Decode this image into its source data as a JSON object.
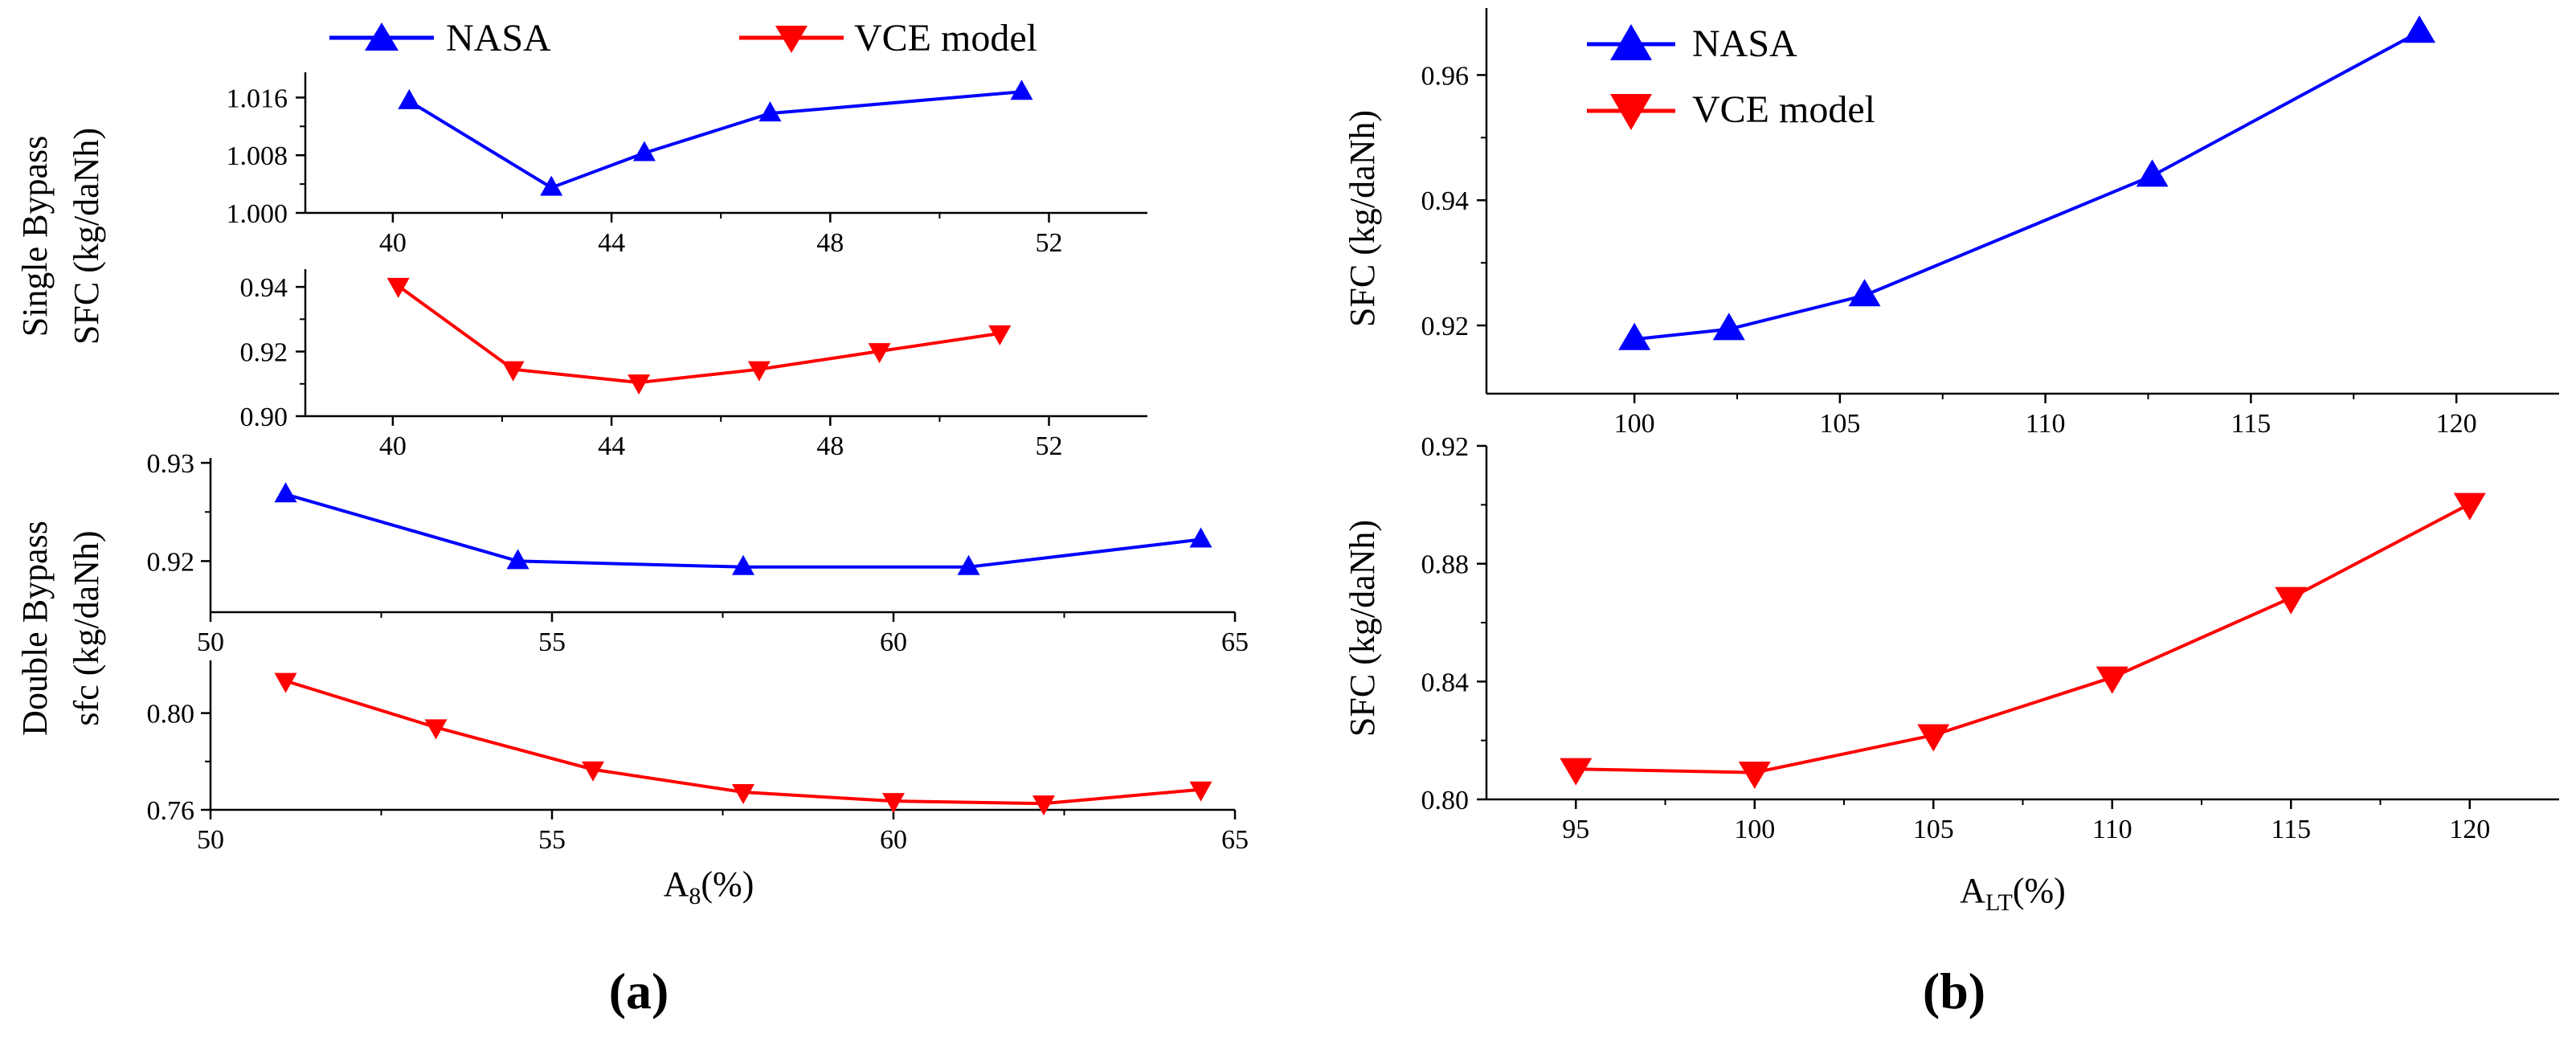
{
  "legend": {
    "nasa": "NASA",
    "vce": "VCE model"
  },
  "colors": {
    "nasa": "#0000FF",
    "vce": "#FF0000",
    "axis": "#000000"
  },
  "panel_labels": {
    "a": "(a)",
    "b": "(b)"
  },
  "group_labels": {
    "single_line1": "Single Bypass",
    "single_line2": "SFC (kg/daNh)",
    "double_line1": "Double Bypass",
    "double_line2": "sfc (kg/daNh)"
  },
  "xlabels": {
    "a_base": "A",
    "a_sub": "8",
    "a_unit": "(%)",
    "b_base": "A",
    "b_sub": "LT",
    "b_unit": "(%)"
  },
  "ylabels": {
    "b_top": "SFC (kg/daNh)",
    "b_bottom": "SFC (kg/daNh)"
  },
  "chart_data": [
    {
      "id": "a1",
      "type": "line",
      "panel": "a",
      "group": "Single Bypass",
      "series": [
        {
          "name": "NASA",
          "marker": "triangle-up",
          "x": [
            40.3,
            42.9,
            44.6,
            46.9,
            51.5
          ],
          "y": [
            1.0155,
            1.0035,
            1.0083,
            1.0138,
            1.0168
          ]
        }
      ],
      "xlim": [
        38.4,
        53.8
      ],
      "ylim": [
        1.0,
        1.0195
      ],
      "xticks": [
        40,
        44,
        48,
        52
      ],
      "yticks": [
        1.0,
        1.008,
        1.016
      ],
      "xtick_labels": [
        "40",
        "44",
        "48",
        "52"
      ],
      "ytick_labels": [
        "1.000",
        "1.008",
        "1.016"
      ]
    },
    {
      "id": "a2",
      "type": "line",
      "panel": "a",
      "group": "Single Bypass",
      "series": [
        {
          "name": "VCE model",
          "marker": "triangle-down",
          "x": [
            40.1,
            42.2,
            44.5,
            46.7,
            48.9,
            51.1
          ],
          "y": [
            0.9403,
            0.9145,
            0.9104,
            0.9145,
            0.9201,
            0.9256
          ]
        }
      ],
      "xlim": [
        38.4,
        53.8
      ],
      "ylim": [
        0.9,
        0.9455
      ],
      "xticks": [
        40,
        44,
        48,
        52
      ],
      "yticks": [
        0.9,
        0.92,
        0.94
      ],
      "xtick_labels": [
        "40",
        "44",
        "48",
        "52"
      ],
      "ytick_labels": [
        "0.90",
        "0.92",
        "0.94"
      ]
    },
    {
      "id": "a3",
      "type": "line",
      "panel": "a",
      "group": "Double Bypass",
      "series": [
        {
          "name": "NASA",
          "marker": "triangle-up",
          "x": [
            51.1,
            54.5,
            57.8,
            61.1,
            64.5
          ],
          "y": [
            0.9268,
            0.92,
            0.9194,
            0.9194,
            0.9222
          ]
        }
      ],
      "xlim": [
        50,
        65
      ],
      "ylim": [
        0.9148,
        0.9305
      ],
      "xticks": [
        50,
        55,
        60,
        65
      ],
      "yticks": [
        0.92,
        0.93
      ],
      "xtick_labels": [
        "50",
        "55",
        "60",
        "65"
      ],
      "ytick_labels": [
        "0.92",
        "0.93"
      ]
    },
    {
      "id": "a4",
      "type": "line",
      "panel": "a",
      "group": "Double Bypass",
      "series": [
        {
          "name": "VCE model",
          "marker": "triangle-down",
          "x": [
            51.1,
            53.3,
            55.6,
            57.8,
            60.0,
            62.2,
            64.5
          ],
          "y": [
            0.8133,
            0.7941,
            0.7767,
            0.7673,
            0.7636,
            0.7626,
            0.7684
          ]
        }
      ],
      "xlim": [
        50,
        65
      ],
      "ylim": [
        0.76,
        0.8218
      ],
      "xticks": [
        50,
        55,
        60,
        65
      ],
      "yticks": [
        0.76,
        0.8
      ],
      "xtick_labels": [
        "50",
        "55",
        "60",
        "65"
      ],
      "ytick_labels": [
        "0.76",
        "0.80"
      ],
      "xlabel": "A8(%)"
    },
    {
      "id": "b1",
      "type": "line",
      "panel": "b",
      "series": [
        {
          "name": "NASA",
          "marker": "triangle-up",
          "x": [
            100,
            102.3,
            105.6,
            112.6,
            119.1
          ],
          "y": [
            0.9178,
            0.9194,
            0.9248,
            0.9439,
            0.9669
          ]
        }
      ],
      "xlim": [
        96.4,
        122.5
      ],
      "ylim": [
        0.9091,
        0.9707
      ],
      "xticks": [
        100,
        105,
        110,
        115,
        120
      ],
      "yticks": [
        0.92,
        0.94,
        0.96
      ],
      "xtick_labels": [
        "100",
        "105",
        "110",
        "115",
        "120"
      ],
      "ytick_labels": [
        "0.92",
        "0.94",
        "0.96"
      ],
      "ylabel": "SFC (kg/daNh)"
    },
    {
      "id": "b2",
      "type": "line",
      "panel": "b",
      "series": [
        {
          "name": "VCE model",
          "marker": "triangle-down",
          "x": [
            95,
            100,
            105,
            110,
            115,
            120
          ],
          "y": [
            0.8103,
            0.8091,
            0.8218,
            0.8414,
            0.8684,
            0.9003
          ]
        }
      ],
      "xlim": [
        92.5,
        122.5
      ],
      "ylim": [
        0.8,
        0.92
      ],
      "xticks": [
        95,
        100,
        105,
        110,
        115,
        120
      ],
      "yticks": [
        0.8,
        0.84,
        0.88,
        0.92
      ],
      "xtick_labels": [
        "95",
        "100",
        "105",
        "110",
        "115",
        "120"
      ],
      "ytick_labels": [
        "0.80",
        "0.84",
        "0.88",
        "0.92"
      ],
      "ylabel": "SFC (kg/daNh)",
      "xlabel": "ALT(%)"
    }
  ]
}
